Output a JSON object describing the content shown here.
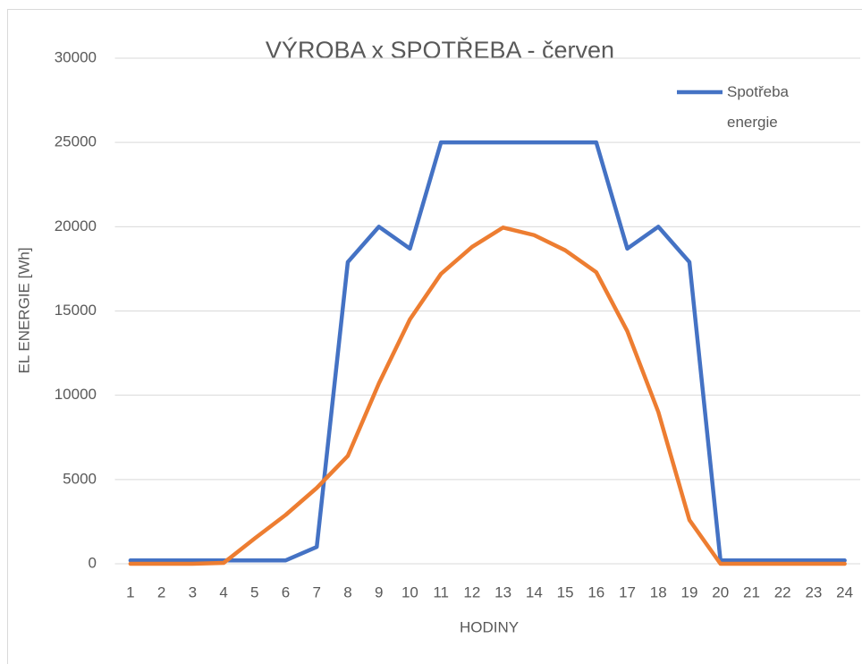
{
  "chart_data": {
    "type": "line",
    "title": "VÝROBA x SPOTŘEBA - červen",
    "x_label": "HODINY",
    "y_label": "EL ENERGIE [Wh]",
    "categories": [
      1,
      2,
      3,
      4,
      5,
      6,
      7,
      8,
      9,
      10,
      11,
      12,
      13,
      14,
      15,
      16,
      17,
      18,
      19,
      20,
      21,
      22,
      23,
      24
    ],
    "series": [
      {
        "name": "Spotřeba energie",
        "color": "#4472c4",
        "values": [
          200,
          200,
          200,
          200,
          200,
          200,
          1000,
          17900,
          20000,
          18700,
          25000,
          25000,
          25000,
          25000,
          25000,
          25000,
          18700,
          20000,
          17900,
          200,
          200,
          200,
          200,
          200
        ]
      },
      {
        "color": "#ed7d31",
        "values": [
          0,
          0,
          0,
          50,
          1500,
          2900,
          4500,
          6400,
          10700,
          14500,
          17200,
          18800,
          19950,
          19500,
          18600,
          17300,
          13800,
          9000,
          2600,
          0,
          0,
          0,
          0,
          0
        ]
      }
    ],
    "ylim": [
      0,
      30000
    ],
    "yticks": [
      0,
      5000,
      10000,
      15000,
      20000,
      25000,
      30000
    ],
    "grid": true,
    "legend": "top-right"
  }
}
